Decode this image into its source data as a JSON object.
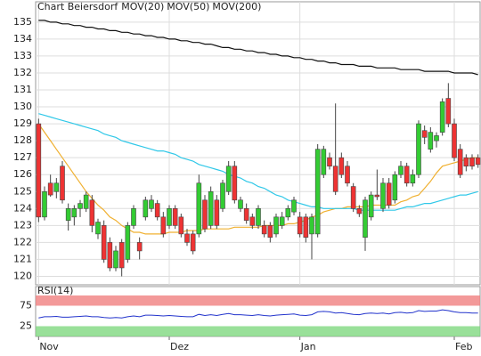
{
  "chart_data": [
    {
      "type": "candlestick",
      "title": "Chart Beiersdorf",
      "title_color": "#e03030",
      "categories": [
        "Nov",
        null,
        null,
        null,
        null,
        null,
        null,
        null,
        null,
        null,
        null,
        null,
        null,
        null,
        null,
        null,
        null,
        null,
        null,
        null,
        null,
        null,
        "Dez",
        null,
        null,
        null,
        null,
        null,
        null,
        null,
        null,
        null,
        null,
        null,
        null,
        null,
        null,
        null,
        null,
        null,
        null,
        null,
        null,
        null,
        "Jan",
        null,
        null,
        null,
        null,
        null,
        null,
        null,
        null,
        null,
        null,
        null,
        null,
        null,
        null,
        null,
        null,
        null,
        null,
        null,
        null,
        null,
        null,
        null,
        null,
        null,
        "Feb",
        null,
        null,
        null,
        null
      ],
      "open": [
        129,
        123.5,
        125.5,
        125,
        126.5,
        123.3,
        123.5,
        124,
        124,
        124.5,
        122.5,
        123,
        122,
        120.5,
        122,
        121,
        123,
        122,
        123.5,
        124,
        124.3,
        123.5,
        123,
        124,
        123.5,
        122.5,
        122.5,
        122.5,
        124.5,
        123,
        124.5,
        124,
        125,
        126.5,
        124,
        124,
        123.5,
        123,
        123,
        123,
        122.5,
        123,
        123.5,
        123.8,
        123.5,
        123.5,
        122.5,
        122.5,
        126,
        127,
        126.5,
        127,
        126.5,
        125.3,
        124,
        122.3,
        123.5,
        124.8,
        124,
        125.5,
        124.5,
        126,
        126.5,
        125.5,
        126,
        128.6,
        127.5,
        128,
        128.5,
        130.5,
        129,
        127.5,
        127,
        127,
        127
      ],
      "high": [
        129.3,
        125.3,
        126,
        125.8,
        126.8,
        124.3,
        124.2,
        124.5,
        125,
        124.8,
        123.4,
        123.3,
        122.3,
        121.8,
        122.2,
        123.2,
        124.2,
        122.3,
        124.7,
        124.8,
        124.5,
        123.8,
        124.2,
        124.2,
        123.7,
        122.8,
        122.7,
        126,
        124.8,
        125.3,
        124.8,
        125.7,
        126.8,
        126.8,
        124.7,
        124.3,
        123.7,
        124.2,
        123.3,
        123.2,
        123.7,
        123.8,
        124.2,
        124.7,
        123.8,
        123.7,
        123.7,
        127.8,
        127.7,
        127.3,
        130.2,
        127.3,
        126.8,
        125.5,
        124.2,
        124.7,
        125,
        126.3,
        125.8,
        125.8,
        126.2,
        126.8,
        126.7,
        126.3,
        129.2,
        128.9,
        128.8,
        128.5,
        130.5,
        131.4,
        129.3,
        127.8,
        127.2,
        127.2,
        127.2
      ],
      "low": [
        123.2,
        123.3,
        124.7,
        124.6,
        124.3,
        122.7,
        123,
        123.5,
        123.8,
        122.6,
        122.2,
        120.8,
        120.3,
        120.3,
        120,
        120.8,
        122.8,
        121,
        123.3,
        123.8,
        123.3,
        122.3,
        122.8,
        122.8,
        122.3,
        121.8,
        121.3,
        122.3,
        122.6,
        122.8,
        122.8,
        123.8,
        124.8,
        124.3,
        123.8,
        123.1,
        122.8,
        122.8,
        122.3,
        122,
        122.3,
        122.8,
        123.3,
        123.6,
        122.3,
        122,
        121,
        122.3,
        125.8,
        126.3,
        124.8,
        125.8,
        125.3,
        123.8,
        123.5,
        121.5,
        123.3,
        124.5,
        123.8,
        124,
        124.3,
        125.8,
        125.3,
        125.3,
        125.8,
        127.8,
        127.3,
        127.6,
        128.3,
        128.8,
        126.8,
        125.8,
        126.2,
        126.3,
        126.4
      ],
      "close": [
        123.5,
        125,
        124.8,
        125.5,
        124.5,
        124,
        124,
        124.3,
        124.8,
        123,
        123.2,
        121,
        120.5,
        121.5,
        120.5,
        123,
        124,
        121.5,
        124.5,
        124.5,
        123.5,
        122.5,
        124,
        123,
        122.5,
        122,
        121.5,
        125.5,
        122.8,
        125,
        123,
        125.5,
        126.5,
        124.5,
        124.5,
        123.3,
        123,
        124,
        122.5,
        122.3,
        123.5,
        123.5,
        124,
        124.5,
        122.5,
        122.3,
        123.5,
        127.5,
        127.5,
        126.5,
        125,
        126,
        125.5,
        124,
        123.7,
        124.5,
        124.8,
        124.7,
        125.5,
        124.2,
        126,
        126.5,
        125.5,
        126,
        129,
        128.2,
        128.5,
        128.3,
        130.3,
        129,
        127,
        126,
        126.5,
        126.5,
        126.6
      ],
      "up_color": "#33cc33",
      "down_color": "#ee3333",
      "series": [
        {
          "name": "MOV(20)",
          "color": "#f0b030",
          "values": [
            129,
            128.5,
            128,
            127.5,
            127,
            126.5,
            126,
            125.5,
            125,
            124.6,
            124.2,
            123.9,
            123.5,
            123.3,
            123,
            122.8,
            122.6,
            122.6,
            122.5,
            122.5,
            122.5,
            122.5,
            122.6,
            122.6,
            122.6,
            122.7,
            122.7,
            122.7,
            122.8,
            122.8,
            122.8,
            122.8,
            122.8,
            122.9,
            122.9,
            122.9,
            122.9,
            122.9,
            123,
            123,
            123,
            123,
            123.1,
            123.1,
            123.2,
            123.3,
            123.5,
            123.6,
            123.8,
            123.9,
            124,
            124,
            124.1,
            124.1,
            124.1,
            124.1,
            124.2,
            124.2,
            124.2,
            124.2,
            124.2,
            124.4,
            124.5,
            124.7,
            124.8,
            125.2,
            125.6,
            126.1,
            126.5,
            126.6,
            126.7,
            126.8,
            126.9,
            127,
            127
          ]
        },
        {
          "name": "MOV(50)",
          "color": "#30c8e8",
          "values": [
            129.6,
            129.5,
            129.4,
            129.3,
            129.2,
            129.1,
            129,
            128.9,
            128.8,
            128.7,
            128.6,
            128.4,
            128.3,
            128.2,
            128,
            127.9,
            127.8,
            127.7,
            127.6,
            127.5,
            127.4,
            127.4,
            127.3,
            127.2,
            127,
            126.9,
            126.8,
            126.6,
            126.5,
            126.4,
            126.3,
            126.2,
            126,
            125.9,
            125.8,
            125.6,
            125.5,
            125.3,
            125.2,
            125,
            124.8,
            124.7,
            124.5,
            124.4,
            124.3,
            124.2,
            124.1,
            124.1,
            124,
            124,
            124,
            124,
            124,
            124,
            123.9,
            123.9,
            123.9,
            123.9,
            123.9,
            123.9,
            123.9,
            124,
            124.1,
            124.1,
            124.2,
            124.3,
            124.3,
            124.4,
            124.5,
            124.6,
            124.7,
            124.8,
            124.8,
            124.9,
            125
          ]
        },
        {
          "name": "MOV(200)",
          "color": "#111111",
          "values": [
            135.1,
            135.1,
            135,
            135,
            134.9,
            134.9,
            134.8,
            134.8,
            134.7,
            134.7,
            134.6,
            134.6,
            134.5,
            134.5,
            134.4,
            134.4,
            134.3,
            134.3,
            134.2,
            134.2,
            134.1,
            134.1,
            134,
            134,
            133.9,
            133.9,
            133.8,
            133.8,
            133.7,
            133.7,
            133.6,
            133.5,
            133.5,
            133.4,
            133.4,
            133.3,
            133.3,
            133.2,
            133.2,
            133.1,
            133.1,
            133,
            133,
            132.9,
            132.9,
            132.8,
            132.8,
            132.7,
            132.7,
            132.6,
            132.6,
            132.5,
            132.5,
            132.5,
            132.4,
            132.4,
            132.4,
            132.3,
            132.3,
            132.3,
            132.3,
            132.2,
            132.2,
            132.2,
            132.2,
            132.1,
            132.1,
            132.1,
            132.1,
            132.1,
            132,
            132,
            132,
            132,
            131.9
          ]
        }
      ],
      "ylim": [
        119.5,
        136.2
      ],
      "yticks": [
        120,
        121,
        122,
        123,
        124,
        125,
        126,
        127,
        128,
        129,
        130,
        131,
        132,
        133,
        134,
        135
      ],
      "grid": true
    },
    {
      "type": "line",
      "title": "RSI(14)",
      "series": [
        {
          "color": "#2233cc",
          "values": [
            45,
            48,
            48,
            49,
            47,
            47,
            48,
            49,
            50,
            48,
            48,
            46,
            45,
            46,
            45,
            48,
            50,
            48,
            52,
            52,
            51,
            50,
            51,
            50,
            49,
            48,
            48,
            54,
            51,
            53,
            51,
            54,
            56,
            53,
            53,
            52,
            51,
            53,
            51,
            50,
            52,
            53,
            54,
            55,
            52,
            51,
            53,
            60,
            61,
            60,
            57,
            58,
            56,
            54,
            53,
            56,
            57,
            56,
            57,
            55,
            58,
            59,
            57,
            58,
            63,
            61,
            62,
            62,
            65,
            63,
            60,
            58,
            58,
            57,
            57
          ]
        }
      ],
      "ylim": [
        0,
        100
      ],
      "yticks": [
        25,
        75
      ],
      "upper_band_color": "#f08080",
      "lower_band_color": "#80d880"
    }
  ]
}
